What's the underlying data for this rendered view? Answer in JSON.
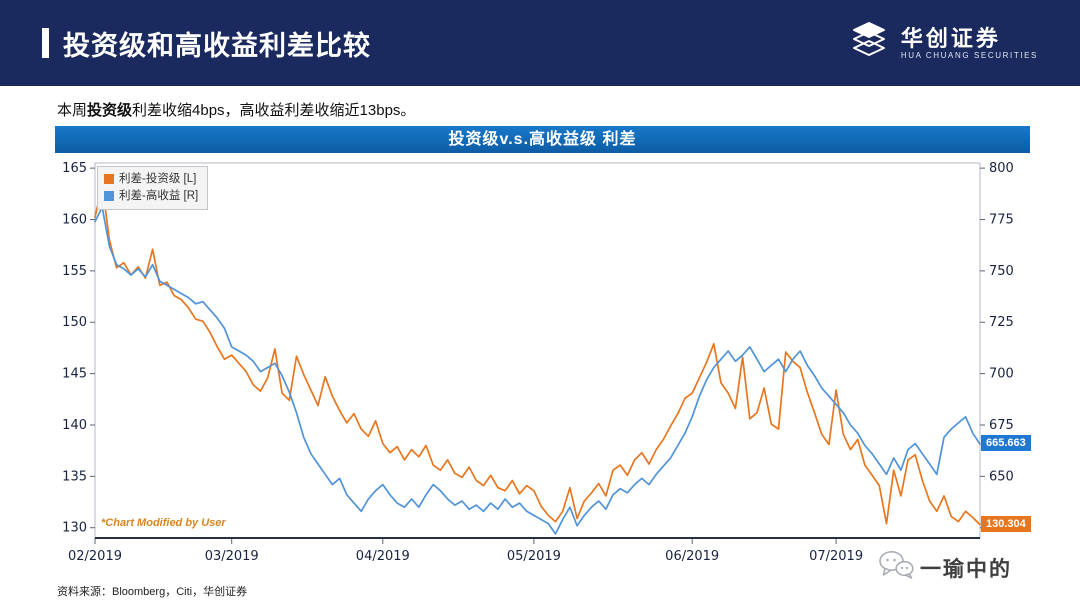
{
  "header": {
    "title": "投资级和高收益利差比较",
    "logo_cn": "华创证券",
    "logo_en": "HUA CHUANG SECURITIES"
  },
  "summary": {
    "prefix": "本周",
    "bold": "投资级",
    "rest": "利差收缩4bps，高收益利差收缩近13bps。"
  },
  "chart_data": {
    "type": "line",
    "title": "投资级v.s.高收益级 利差",
    "note": "*Chart Modified by User",
    "legend": [
      {
        "label": "利差-投资级 [L]",
        "color": "#e8761f"
      },
      {
        "label": "利差-高收益 [R]",
        "color": "#4f93d8"
      }
    ],
    "x_ticks": [
      "02/2019",
      "03/2019",
      "04/2019",
      "05/2019",
      "06/2019",
      "07/2019"
    ],
    "x_tick_indices": [
      0,
      19,
      40,
      61,
      83,
      103
    ],
    "left_axis": {
      "min": 129,
      "max": 165.5,
      "ticks": [
        130,
        135,
        140,
        145,
        150,
        155,
        160,
        165
      ]
    },
    "right_axis": {
      "min": 620,
      "max": 802.5,
      "ticks": [
        625,
        650,
        675,
        700,
        725,
        750,
        775,
        800
      ]
    },
    "series": [
      {
        "name": "利差-投资级 [L]",
        "axis": "left",
        "color": "#e8761f",
        "values": [
          160.2,
          163.4,
          158.0,
          155.3,
          155.8,
          154.6,
          155.4,
          154.3,
          157.1,
          153.6,
          153.9,
          152.6,
          152.2,
          151.4,
          150.3,
          150.1,
          149.0,
          147.6,
          146.4,
          146.8,
          146.0,
          145.2,
          143.9,
          143.3,
          144.6,
          147.4,
          143.1,
          142.4,
          146.7,
          144.9,
          143.4,
          141.9,
          144.7,
          142.8,
          141.4,
          140.2,
          141.1,
          139.6,
          138.9,
          140.4,
          138.2,
          137.3,
          137.9,
          136.6,
          137.6,
          136.9,
          138.0,
          136.1,
          135.6,
          136.6,
          135.3,
          134.9,
          135.9,
          134.6,
          134.1,
          135.1,
          133.9,
          133.6,
          134.6,
          133.3,
          134.1,
          133.6,
          132.1,
          131.2,
          130.6,
          131.6,
          133.9,
          130.9,
          132.6,
          133.4,
          134.3,
          133.1,
          135.6,
          136.1,
          135.1,
          136.6,
          137.3,
          136.2,
          137.6,
          138.6,
          139.9,
          141.1,
          142.6,
          143.1,
          144.6,
          146.1,
          147.9,
          144.1,
          143.1,
          141.6,
          146.6,
          140.6,
          141.2,
          143.6,
          140.1,
          139.6,
          147.1,
          146.2,
          145.6,
          143.2,
          141.2,
          139.1,
          138.1,
          143.4,
          139.1,
          137.6,
          138.6,
          136.1,
          135.1,
          134.1,
          130.4,
          135.6,
          133.1,
          136.6,
          137.1,
          134.6,
          132.6,
          131.6,
          133.1,
          131.1,
          130.6,
          131.6,
          131.0,
          130.304
        ]
      },
      {
        "name": "利差-高收益 [R]",
        "axis": "right",
        "color": "#4f93d8",
        "values": [
          774,
          781,
          762,
          753,
          751,
          748,
          751,
          747,
          753,
          745,
          743,
          741,
          739,
          737,
          734,
          735,
          731,
          727,
          722,
          713,
          711,
          709,
          706,
          701,
          703,
          705,
          699,
          691,
          681,
          669,
          661,
          656,
          651,
          646,
          649,
          641,
          637,
          633,
          639,
          643,
          646,
          641,
          637,
          635,
          639,
          635,
          641,
          646,
          643,
          639,
          636,
          638,
          634,
          636,
          633,
          637,
          634,
          639,
          635,
          637,
          633,
          631,
          629,
          627,
          622,
          629,
          635,
          626,
          631,
          635,
          638,
          634,
          641,
          644,
          642,
          646,
          649,
          646,
          651,
          655,
          659,
          665,
          671,
          679,
          689,
          697,
          703,
          707,
          711,
          706,
          709,
          713,
          707,
          701,
          704,
          707,
          701,
          707,
          711,
          704,
          699,
          693,
          689,
          685,
          681,
          675,
          671,
          665,
          661,
          656,
          651,
          659,
          653,
          663,
          666,
          661,
          656,
          651,
          669,
          673,
          676,
          679,
          671,
          665.663
        ]
      }
    ],
    "end_labels": [
      {
        "text": "665.663",
        "color": "#1f78d1",
        "series": 1
      },
      {
        "text": "130.304",
        "color": "#e8761f",
        "series": 0
      }
    ]
  },
  "footer": {
    "source": "资料来源：Bloomberg，Citi，华创证券"
  },
  "watermark": {
    "text": "一瑜中的"
  }
}
